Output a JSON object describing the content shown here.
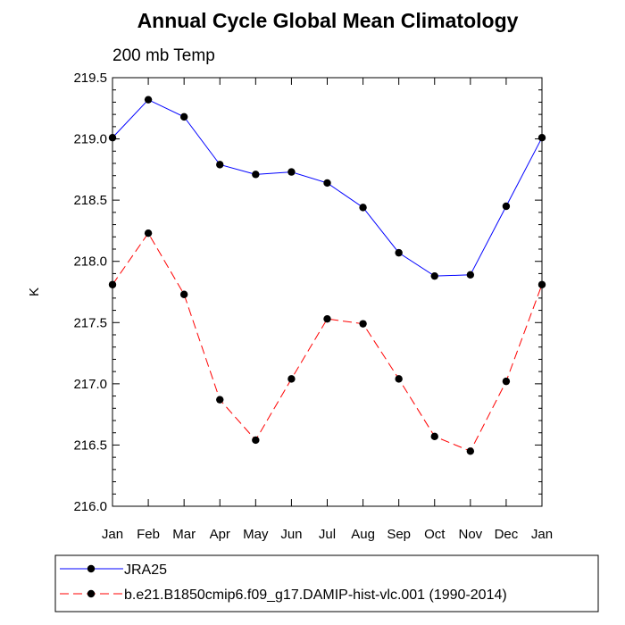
{
  "chart_data": {
    "type": "line",
    "title": "Annual Cycle Global Mean Climatology",
    "subtitle": "200 mb Temp",
    "ylabel": "K",
    "xlabel": "",
    "categories": [
      "Jan",
      "Feb",
      "Mar",
      "Apr",
      "May",
      "Jun",
      "Jul",
      "Aug",
      "Sep",
      "Oct",
      "Nov",
      "Dec",
      "Jan"
    ],
    "ylim": [
      216.0,
      219.5
    ],
    "yticks": [
      "216.0",
      "216.5",
      "217.0",
      "217.5",
      "218.0",
      "218.5",
      "219.0",
      "219.5"
    ],
    "grid": false,
    "legend_position": "bottom",
    "series": [
      {
        "name": "JRA25",
        "color": "#0000ff",
        "line_style": "solid",
        "marker": "filled-circle",
        "values": [
          219.01,
          219.32,
          219.18,
          218.79,
          218.71,
          218.73,
          218.64,
          218.44,
          218.07,
          217.88,
          217.89,
          218.45,
          219.01
        ]
      },
      {
        "name": "b.e21.B1850cmip6.f09_g17.DAMIP-hist-vlc.001 (1990-2014)",
        "color": "#ff0000",
        "line_style": "dashed",
        "marker": "filled-circle",
        "values": [
          217.81,
          218.23,
          217.73,
          216.87,
          216.54,
          217.04,
          217.53,
          217.49,
          217.04,
          216.57,
          216.45,
          217.02,
          217.81
        ]
      }
    ]
  }
}
